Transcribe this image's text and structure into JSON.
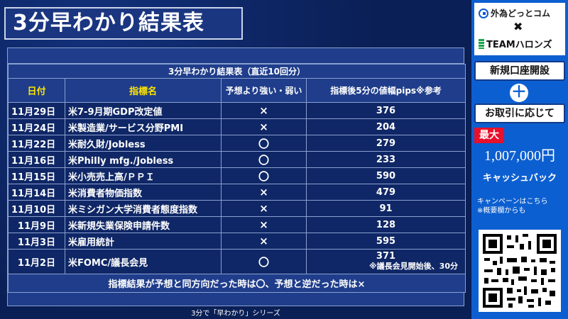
{
  "header": {
    "title": "3分早わかり結果表"
  },
  "table": {
    "caption": "3分早わかり結果表（直近10回分）",
    "columns": [
      "日付",
      "指標名",
      "予想より強い・弱い",
      "指標後5分の値幅pips※参考"
    ],
    "rows": [
      {
        "date": "11月29日",
        "indicator": "米7-9月期GDP改定値",
        "result": "×",
        "pips": "376"
      },
      {
        "date": "11月24日",
        "indicator": "米製造業/サービス分野PMI",
        "result": "×",
        "pips": "204"
      },
      {
        "date": "11月22日",
        "indicator": "米耐久財/Jobless",
        "result": "〇",
        "pips": "279"
      },
      {
        "date": "11月16日",
        "indicator": "米Philly mfg./Jobless",
        "result": "〇",
        "pips": "233"
      },
      {
        "date": "11月15日",
        "indicator": "米小売売上高/ＰＰＩ",
        "result": "〇",
        "pips": "590"
      },
      {
        "date": "11月14日",
        "indicator": "米消費者物価指数",
        "result": "×",
        "pips": "479"
      },
      {
        "date": "11月10日",
        "indicator": "米ミシガン大学消費者態度指数",
        "result": "×",
        "pips": "91"
      },
      {
        "date": "11月9日",
        "indicator": "米新規失業保険申請件数",
        "result": "×",
        "pips": "128"
      },
      {
        "date": "11月3日",
        "indicator": "米雇用統計",
        "result": "×",
        "pips": "595"
      },
      {
        "date": "11月2日",
        "indicator": "米FOMC/議長会見",
        "result": "〇",
        "pips": "371",
        "note": "※議長会見開始後、30分"
      }
    ],
    "footnote": "指標結果が予想と同方向だった時は〇、予想と逆だった時は×"
  },
  "bottom_caption": "3分で「早わかり」シリーズ",
  "sidebar": {
    "logo1": "外為どっとコム",
    "cross": "✖",
    "logo2": "TEAMハロンズ",
    "open_account": "新規口座開設",
    "plus": "＋",
    "according_trade": "お取引に応じて",
    "max": "最大",
    "amount": "1,007,000円",
    "cashback": "キャッシュバック",
    "campaign_line1": "キャンペーンはこちら",
    "campaign_line2": "※概要欄からも"
  },
  "colors": {
    "background": "#0a1f55",
    "header_yellow": "#ffe600",
    "side_blue": "#0c5fd0",
    "max_red": "#e8102a"
  }
}
